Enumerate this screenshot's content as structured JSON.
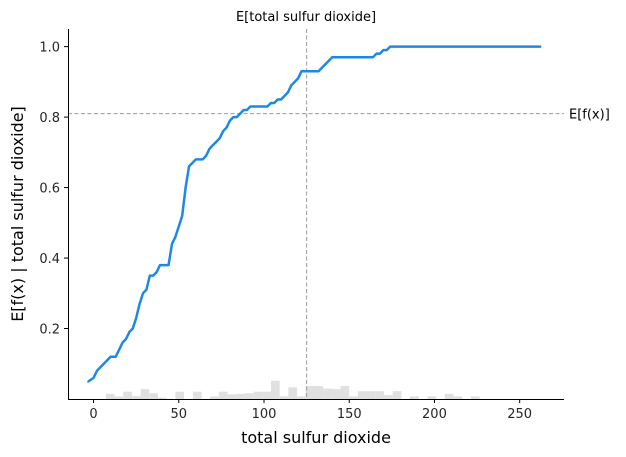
{
  "chart_data": {
    "type": "line",
    "title": "E[total sulfur dioxide]",
    "xlabel": "total sulfur dioxide",
    "ylabel": "E[f(x) | total sulfur dioxide]",
    "xlim": [
      -15,
      276
    ],
    "ylim": [
      0,
      1.05
    ],
    "xticks": [
      0,
      50,
      100,
      150,
      200,
      250
    ],
    "yticks": [
      0.2,
      0.4,
      0.6,
      0.8,
      1.0
    ],
    "xtick_labels": [
      "0",
      "50",
      "100",
      "150",
      "200",
      "250"
    ],
    "ytick_labels": [
      "0.2",
      "0.4",
      "0.6",
      "0.8",
      "1.0"
    ],
    "grid": false,
    "series": [
      {
        "color": "#1e88e5",
        "x": [
          -3,
          0,
          2,
          4,
          6,
          8,
          10,
          13,
          15,
          17,
          19,
          21,
          23,
          25,
          27,
          29,
          31,
          33,
          35,
          37,
          39,
          42,
          44,
          46,
          48,
          50,
          52,
          54,
          56,
          58,
          60,
          62,
          64,
          66,
          68,
          70,
          72,
          74,
          76,
          78,
          80,
          82,
          84,
          86,
          88,
          90,
          92,
          94,
          96,
          98,
          100,
          102,
          104,
          106,
          108,
          110,
          112,
          114,
          116,
          118,
          120,
          122,
          124,
          126,
          128,
          130,
          132,
          134,
          136,
          138,
          140,
          142,
          144,
          146,
          148,
          150,
          152,
          154,
          156,
          158,
          160,
          162,
          164,
          166,
          168,
          170,
          172,
          174,
          176,
          178,
          180,
          182,
          184,
          186,
          188,
          190,
          192,
          194,
          196,
          198,
          200,
          210,
          220,
          230,
          240,
          250,
          262
        ],
        "y": [
          0.05,
          0.06,
          0.08,
          0.09,
          0.1,
          0.11,
          0.12,
          0.12,
          0.14,
          0.16,
          0.17,
          0.19,
          0.2,
          0.23,
          0.27,
          0.3,
          0.31,
          0.35,
          0.35,
          0.36,
          0.38,
          0.38,
          0.38,
          0.44,
          0.46,
          0.49,
          0.52,
          0.6,
          0.66,
          0.67,
          0.68,
          0.68,
          0.68,
          0.69,
          0.71,
          0.72,
          0.73,
          0.74,
          0.76,
          0.77,
          0.79,
          0.8,
          0.8,
          0.81,
          0.82,
          0.82,
          0.83,
          0.83,
          0.83,
          0.83,
          0.83,
          0.83,
          0.84,
          0.84,
          0.85,
          0.85,
          0.86,
          0.87,
          0.89,
          0.9,
          0.91,
          0.93,
          0.93,
          0.93,
          0.93,
          0.93,
          0.93,
          0.94,
          0.95,
          0.96,
          0.97,
          0.97,
          0.97,
          0.97,
          0.97,
          0.97,
          0.97,
          0.97,
          0.97,
          0.97,
          0.97,
          0.97,
          0.97,
          0.98,
          0.98,
          0.99,
          0.99,
          1.0,
          1.0,
          1.0,
          1.0,
          1.0,
          1.0,
          1.0,
          1.0,
          1.0,
          1.0,
          1.0,
          1.0,
          1.0,
          1.0,
          1.0,
          1.0,
          1.0,
          1.0,
          1.0,
          1.0
        ]
      }
    ],
    "reference_lines": {
      "vertical_x": 125,
      "horizontal_y": 0.81,
      "horizontal_label": "E[f(x)]",
      "color": "#999999"
    },
    "histogram": {
      "color": "#e0e0e0",
      "bin_start": -3,
      "bin_width": 5.1,
      "relative_heights": [
        0,
        0,
        0.2,
        0.1,
        0.28,
        0.12,
        0.38,
        0.22,
        0.05,
        0.0,
        0.28,
        0.0,
        0.28,
        0.0,
        0.1,
        0.28,
        0.18,
        0.2,
        0.22,
        0.28,
        0.28,
        0.7,
        0.1,
        0.45,
        0.1,
        0.5,
        0.5,
        0.4,
        0.38,
        0.5,
        0.1,
        0.3,
        0.3,
        0.3,
        0.15,
        0.3,
        0.0,
        0.1,
        0.0,
        0.1,
        0.0,
        0.2,
        0.1,
        0.0,
        0.1,
        0.0,
        0.0,
        0.0,
        0.0,
        0.0,
        0.0,
        0.0
      ]
    }
  }
}
